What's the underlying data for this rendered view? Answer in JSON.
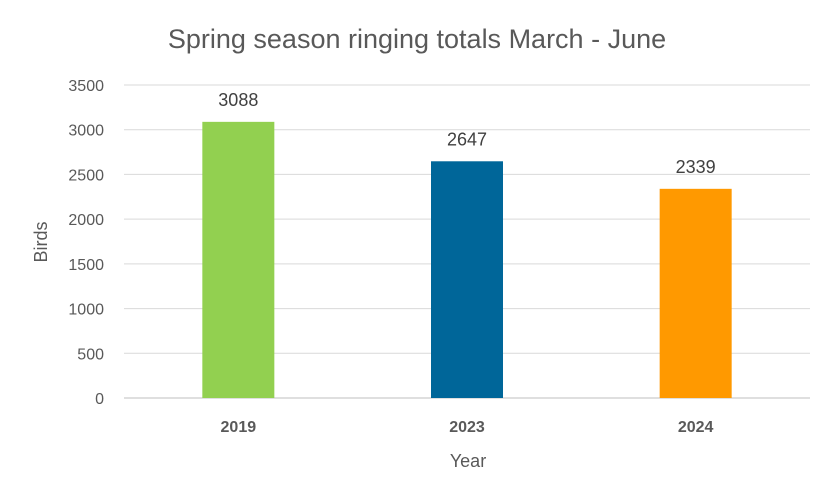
{
  "chart_data": {
    "type": "bar",
    "title": "Spring season ringing totals March - June",
    "xlabel": "Year",
    "ylabel": "Birds",
    "categories": [
      "2019",
      "2023",
      "2024"
    ],
    "values": [
      3088,
      2647,
      2339
    ],
    "colors": [
      "#92d050",
      "#006699",
      "#ff9900"
    ],
    "ylim": [
      0,
      3500
    ],
    "yticks": [
      0,
      500,
      1000,
      1500,
      2000,
      2500,
      3000,
      3500
    ],
    "grid": true,
    "legend": "none"
  }
}
